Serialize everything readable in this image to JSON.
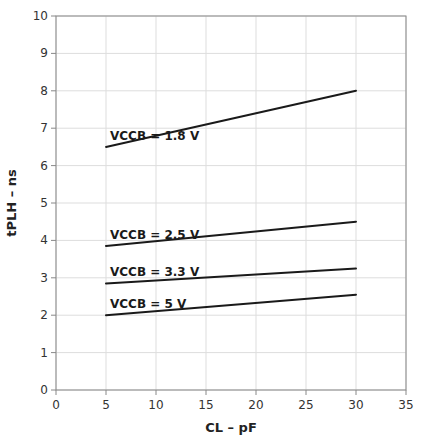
{
  "chart_data": {
    "type": "line",
    "xlabel": "CL – pF",
    "ylabel": "tPLH – ns",
    "x": [
      5,
      30
    ],
    "series": [
      {
        "name": "VCCB = 1.8 V",
        "color": "#1a1a1a",
        "values": [
          6.5,
          8.0
        ]
      },
      {
        "name": "VCCB = 2.5 V",
        "color": "#1a1a1a",
        "values": [
          3.85,
          4.5
        ]
      },
      {
        "name": "VCCB = 3.3 V",
        "color": "#1a1a1a",
        "values": [
          2.85,
          3.25
        ]
      },
      {
        "name": "VCCB = 5 V",
        "color": "#1a1a1a",
        "values": [
          2.0,
          2.55
        ]
      }
    ],
    "xlim": [
      0,
      35
    ],
    "ylim": [
      0,
      10
    ],
    "xticks": [
      0,
      5,
      10,
      15,
      20,
      25,
      30,
      35
    ],
    "yticks": [
      0,
      1,
      2,
      3,
      4,
      5,
      6,
      7,
      8,
      9,
      10
    ],
    "grid": true
  }
}
